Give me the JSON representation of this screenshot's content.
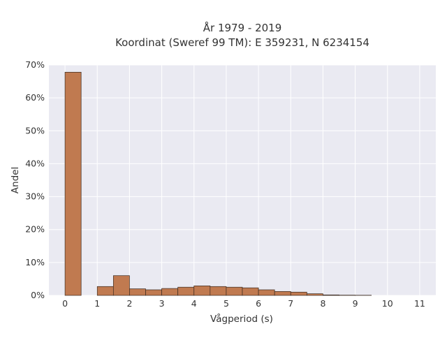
{
  "chart_data": {
    "type": "bar",
    "title": "År 1979 - 2019",
    "subtitle": "Koordinat (Sweref 99 TM): E 359231, N 6234154",
    "xlabel": "Vågperiod (s)",
    "ylabel": "Andel",
    "xlim": [
      -0.5,
      11.5
    ],
    "ylim": [
      0,
      70
    ],
    "x_ticks": [
      0,
      1,
      2,
      3,
      4,
      5,
      6,
      7,
      8,
      9,
      10,
      11
    ],
    "y_ticks": [
      0,
      10,
      20,
      30,
      40,
      50,
      60,
      70
    ],
    "y_tick_suffix": "%",
    "bin_width": 0.5,
    "bins": [
      0,
      1,
      1.5,
      2,
      2.5,
      3,
      3.5,
      4,
      4.5,
      5,
      5.5,
      6,
      6.5,
      7,
      7.5,
      8,
      8.5,
      9
    ],
    "values": [
      67.8,
      2.7,
      6.0,
      2.0,
      1.7,
      2.1,
      2.5,
      2.9,
      2.7,
      2.5,
      2.3,
      1.7,
      1.2,
      1.0,
      0.5,
      0.15,
      0.08,
      0.05
    ],
    "bar_color": "#c07a50",
    "bar_edge_color": "#3a2a20",
    "background": "#eaeaf2",
    "grid": true
  }
}
